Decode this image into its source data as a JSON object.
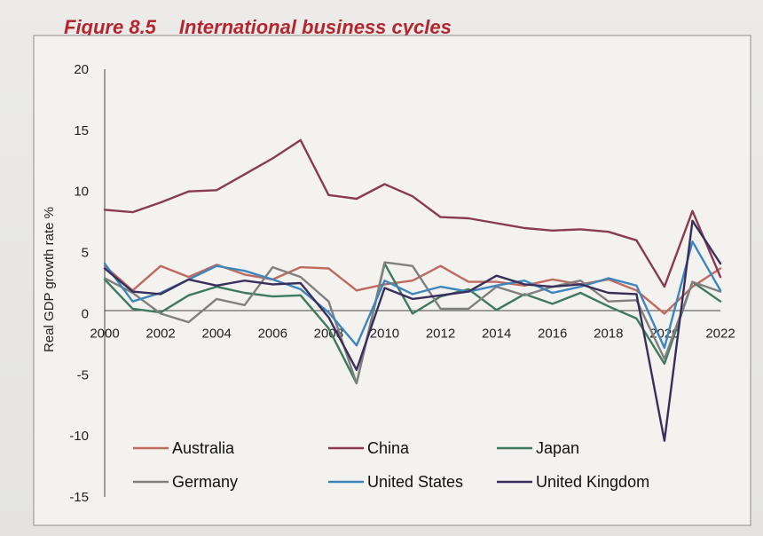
{
  "figure": {
    "number": "Figure 8.5",
    "title": "International business cycles"
  },
  "chart_data": {
    "type": "line",
    "title": "International business cycles",
    "xlabel": "",
    "ylabel": "Real GDP growth rate %",
    "xlim": [
      2000,
      2022
    ],
    "ylim": [
      -15,
      20
    ],
    "x_ticks": [
      "2000",
      "2002",
      "2004",
      "2006",
      "2008",
      "2010",
      "2012",
      "2014",
      "2016",
      "2018",
      "2020",
      "2022"
    ],
    "y_ticks": [
      "20",
      "15",
      "10",
      "5",
      "0",
      "-5",
      "-10",
      "-15"
    ],
    "grid": false,
    "legend_position": "bottom",
    "x": [
      2000,
      2001,
      2002,
      2003,
      2004,
      2005,
      2006,
      2007,
      2008,
      2009,
      2010,
      2011,
      2012,
      2013,
      2014,
      2015,
      2016,
      2017,
      2018,
      2019,
      2020,
      2021,
      2022
    ],
    "series": [
      {
        "name": "Australia",
        "color": "#c0695f",
        "values": [
          3.9,
          1.9,
          3.9,
          3.0,
          4.0,
          3.2,
          2.8,
          3.8,
          3.7,
          1.9,
          2.4,
          2.7,
          3.9,
          2.6,
          2.6,
          2.3,
          2.8,
          2.4,
          2.8,
          1.9,
          0.0,
          2.2,
          3.7
        ]
      },
      {
        "name": "China",
        "color": "#8a3a52",
        "values": [
          8.5,
          8.3,
          9.1,
          10.0,
          10.1,
          11.4,
          12.7,
          14.2,
          9.7,
          9.4,
          10.6,
          9.6,
          7.9,
          7.8,
          7.4,
          7.0,
          6.8,
          6.9,
          6.7,
          6.0,
          2.2,
          8.4,
          3.0
        ]
      },
      {
        "name": "Japan",
        "color": "#3e7a5e",
        "values": [
          2.8,
          0.4,
          0.1,
          1.5,
          2.2,
          1.7,
          1.4,
          1.5,
          -1.2,
          -5.7,
          4.1,
          0.0,
          1.4,
          2.0,
          0.3,
          1.6,
          0.8,
          1.7,
          0.6,
          -0.4,
          -4.1,
          2.6,
          1.0
        ]
      },
      {
        "name": "Germany",
        "color": "#808080",
        "values": [
          2.9,
          1.7,
          0.0,
          -0.7,
          1.2,
          0.7,
          3.8,
          3.0,
          1.0,
          -5.7,
          4.2,
          3.9,
          0.4,
          0.4,
          2.2,
          1.5,
          2.2,
          2.7,
          1.0,
          1.1,
          -3.7,
          2.6,
          1.8
        ]
      },
      {
        "name": "United States",
        "color": "#3d86bd",
        "values": [
          4.1,
          1.0,
          1.7,
          2.8,
          3.9,
          3.5,
          2.8,
          2.0,
          0.1,
          -2.6,
          2.7,
          1.6,
          2.2,
          1.8,
          2.3,
          2.7,
          1.7,
          2.2,
          2.9,
          2.3,
          -2.8,
          5.9,
          1.9
        ]
      },
      {
        "name": "United Kingdom",
        "color": "#3a2f5c",
        "values": [
          3.7,
          1.8,
          1.6,
          2.8,
          2.3,
          2.7,
          2.4,
          2.5,
          -0.3,
          -4.6,
          2.1,
          1.2,
          1.5,
          1.8,
          3.1,
          2.4,
          2.2,
          2.4,
          1.7,
          1.6,
          -10.4,
          7.6,
          4.1
        ]
      }
    ]
  }
}
